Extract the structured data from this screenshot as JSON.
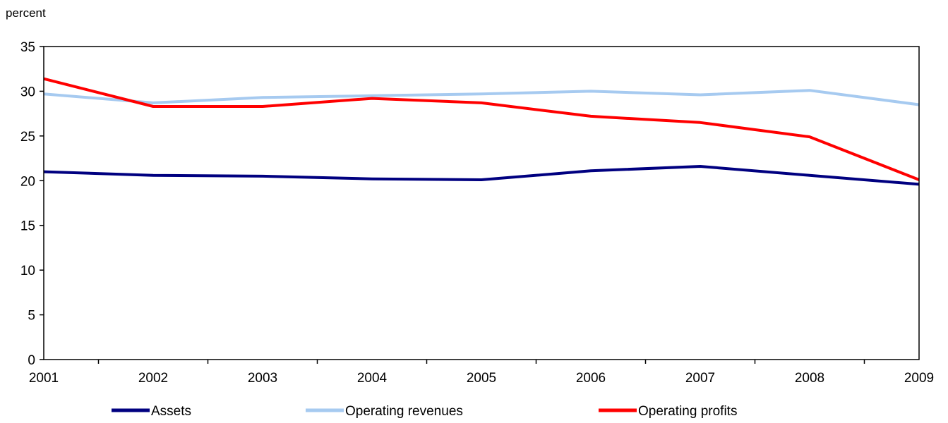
{
  "chart_data": {
    "type": "line",
    "title": "",
    "ylabel": "percent",
    "xlabel": "",
    "x": [
      "2001",
      "2002",
      "2003",
      "2004",
      "2005",
      "2006",
      "2007",
      "2008",
      "2009"
    ],
    "ylim": [
      0,
      35
    ],
    "yticks": [
      "0",
      "5",
      "10",
      "15",
      "20",
      "25",
      "30",
      "35"
    ],
    "grid": false,
    "legend_position": "bottom",
    "series": [
      {
        "name": "Assets",
        "color": "#000080",
        "values": [
          21.0,
          20.6,
          20.5,
          20.2,
          20.1,
          21.1,
          21.6,
          20.6,
          19.6
        ]
      },
      {
        "name": "Operating revenues",
        "color": "#A6CAF0",
        "values": [
          29.7,
          28.7,
          29.3,
          29.5,
          29.7,
          30.0,
          29.6,
          30.1,
          28.5
        ]
      },
      {
        "name": "Operating profits",
        "color": "#FF0000",
        "values": [
          31.4,
          28.3,
          28.3,
          29.2,
          28.7,
          27.2,
          26.5,
          24.9,
          20.1
        ]
      }
    ]
  }
}
